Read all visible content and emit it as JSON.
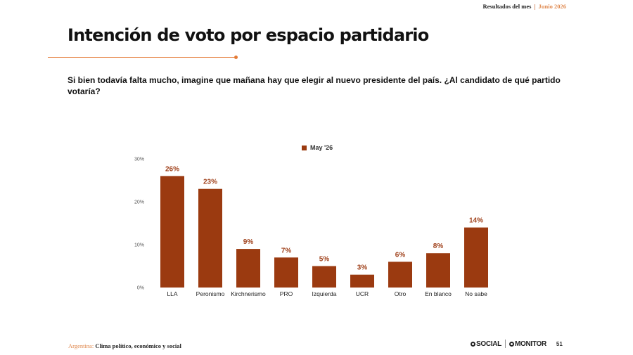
{
  "header": {
    "section": "Resultados del mes",
    "separator": "|",
    "period": "Junio 2026"
  },
  "slide": {
    "title": "Intención de voto por espacio partidario",
    "question": "Si bien todavía falta mucho, imagine que mañana hay que elegir al nuevo presidente del país. ¿Al candidato de qué partido votaría?"
  },
  "chart_data": {
    "type": "bar",
    "categories": [
      "LLA",
      "Peronismo",
      "Kirchnerismo",
      "PRO",
      "Izquierda",
      "UCR",
      "Otro",
      "En blanco",
      "No sabe"
    ],
    "series": [
      {
        "name": "May '26",
        "values": [
          26,
          23,
          9,
          7,
          5,
          3,
          6,
          8,
          14
        ],
        "color": "#9b3a10"
      }
    ],
    "data_labels": [
      "26%",
      "23%",
      "9%",
      "7%",
      "5%",
      "3%",
      "6%",
      "8%",
      "14%"
    ],
    "y_ticks": [
      "0%",
      "10%",
      "20%",
      "30%"
    ],
    "y_tick_values": [
      0,
      10,
      20,
      30
    ],
    "ylim": [
      0,
      30
    ],
    "title": "",
    "xlabel": "",
    "ylabel": "",
    "grid": false,
    "legend_position": "top-center",
    "label_color": "#a0421c"
  },
  "footer": {
    "country": "Argentina:",
    "topic": "Clima político, económico y social",
    "brand1": "SOCIAL",
    "brand2": "MONITOR",
    "page": "51"
  }
}
